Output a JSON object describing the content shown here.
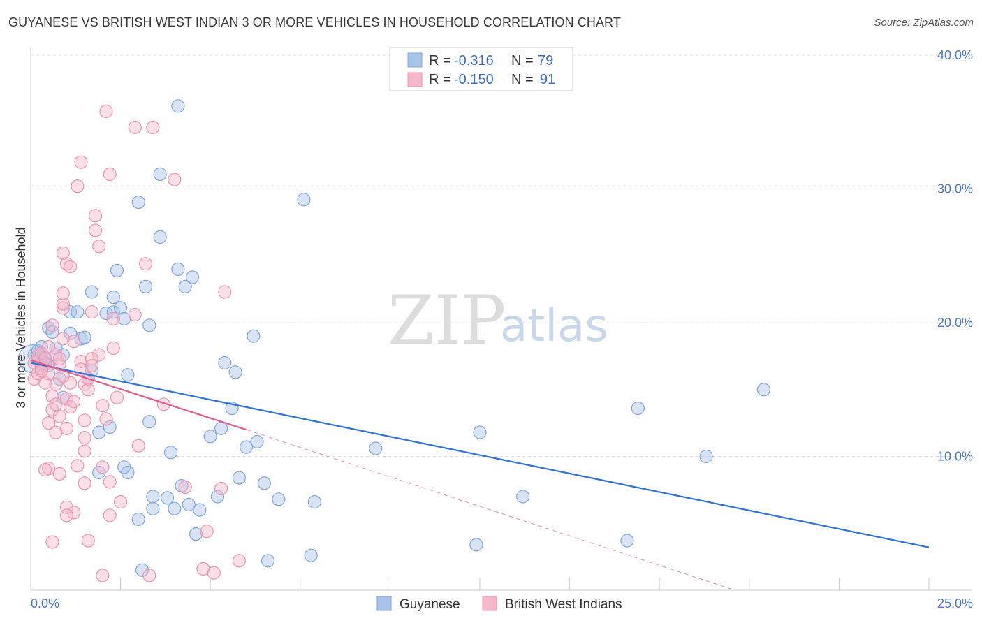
{
  "title": "GUYANESE VS BRITISH WEST INDIAN 3 OR MORE VEHICLES IN HOUSEHOLD CORRELATION CHART",
  "source": "Source: ZipAtlas.com",
  "watermark": {
    "zip": "ZIP",
    "atlas": "atlas"
  },
  "chart_data": {
    "type": "scatter",
    "xlabel": "",
    "ylabel": "3 or more Vehicles in Household",
    "xlim": [
      0,
      25
    ],
    "ylim": [
      0,
      40
    ],
    "x_tick_labels": [
      "0.0%",
      "25.0%"
    ],
    "y_ticks": [
      10,
      20,
      30,
      40
    ],
    "y_tick_labels": [
      "10.0%",
      "20.0%",
      "30.0%",
      "40.0%"
    ],
    "legend": {
      "r_label": "R =",
      "n_label": "N =",
      "entries": [
        {
          "r": "-0.316",
          "n": "79"
        },
        {
          "r": "-0.150",
          "n": "91"
        }
      ]
    },
    "series": [
      {
        "name": "Guyanese",
        "color": "#a9c4ea",
        "stroke": "#7fa6dc",
        "line_color": "#2f72d6",
        "trend": {
          "x0": 0,
          "y0": 17.0,
          "x1": 25,
          "y1": 3.2
        },
        "points": [
          [
            0.1,
            17.6
          ],
          [
            0.2,
            17.2
          ],
          [
            0.3,
            16.9
          ],
          [
            0.2,
            17.9
          ],
          [
            0.4,
            17.4
          ],
          [
            0.5,
            16.8
          ],
          [
            0.3,
            18.2
          ],
          [
            0.4,
            17.0
          ],
          [
            0.5,
            19.6
          ],
          [
            0.6,
            19.3
          ],
          [
            0.7,
            18.1
          ],
          [
            0.8,
            15.8
          ],
          [
            0.9,
            14.4
          ],
          [
            0.9,
            17.6
          ],
          [
            1.1,
            19.2
          ],
          [
            1.1,
            20.8
          ],
          [
            1.3,
            20.8
          ],
          [
            1.4,
            18.8
          ],
          [
            1.5,
            18.9
          ],
          [
            1.6,
            15.8
          ],
          [
            1.7,
            16.4
          ],
          [
            1.7,
            22.3
          ],
          [
            1.9,
            11.8
          ],
          [
            1.9,
            8.8
          ],
          [
            2.1,
            20.7
          ],
          [
            2.2,
            12.2
          ],
          [
            2.3,
            20.8
          ],
          [
            2.3,
            21.9
          ],
          [
            2.4,
            23.9
          ],
          [
            2.5,
            21.1
          ],
          [
            2.6,
            20.3
          ],
          [
            2.6,
            9.2
          ],
          [
            2.7,
            8.8
          ],
          [
            2.7,
            16.1
          ],
          [
            3.0,
            29.0
          ],
          [
            3.0,
            5.3
          ],
          [
            3.1,
            1.5
          ],
          [
            3.2,
            22.7
          ],
          [
            3.3,
            19.8
          ],
          [
            3.3,
            12.6
          ],
          [
            3.4,
            6.1
          ],
          [
            3.4,
            7.0
          ],
          [
            3.6,
            26.4
          ],
          [
            3.6,
            31.1
          ],
          [
            3.8,
            6.9
          ],
          [
            3.9,
            10.3
          ],
          [
            4.0,
            6.1
          ],
          [
            4.1,
            24.0
          ],
          [
            4.1,
            36.2
          ],
          [
            4.2,
            7.8
          ],
          [
            4.3,
            22.7
          ],
          [
            4.4,
            6.4
          ],
          [
            4.5,
            23.4
          ],
          [
            4.6,
            4.2
          ],
          [
            4.7,
            6.0
          ],
          [
            5.0,
            11.5
          ],
          [
            5.2,
            7.0
          ],
          [
            5.3,
            12.1
          ],
          [
            5.4,
            17.0
          ],
          [
            5.6,
            13.6
          ],
          [
            5.7,
            16.3
          ],
          [
            5.8,
            8.4
          ],
          [
            6.0,
            10.7
          ],
          [
            6.2,
            19.0
          ],
          [
            6.3,
            11.1
          ],
          [
            6.5,
            8.0
          ],
          [
            6.6,
            2.2
          ],
          [
            6.9,
            6.8
          ],
          [
            7.6,
            29.2
          ],
          [
            7.8,
            2.6
          ],
          [
            7.9,
            6.6
          ],
          [
            9.6,
            10.6
          ],
          [
            12.4,
            3.4
          ],
          [
            12.5,
            11.8
          ],
          [
            13.7,
            7.0
          ],
          [
            16.6,
            3.7
          ],
          [
            16.9,
            13.6
          ],
          [
            18.8,
            10.0
          ],
          [
            20.4,
            15.0
          ]
        ]
      },
      {
        "name": "British West Indians",
        "color": "#f5b7ca",
        "stroke": "#ec94b0",
        "line_color": "#e05a8d",
        "trend": {
          "x0": 0,
          "y0": 17.2,
          "x1": 6.0,
          "y1": 12.0
        },
        "trend_ext": {
          "x0": 6.0,
          "y0": 12.0,
          "x1": 19.6,
          "y1": 0
        },
        "points": [
          [
            0.1,
            15.8
          ],
          [
            0.1,
            17.0
          ],
          [
            0.2,
            17.5
          ],
          [
            0.2,
            16.2
          ],
          [
            0.3,
            17.7
          ],
          [
            0.3,
            16.6
          ],
          [
            0.4,
            15.5
          ],
          [
            0.4,
            16.9
          ],
          [
            0.4,
            17.3
          ],
          [
            0.5,
            18.2
          ],
          [
            0.5,
            12.5
          ],
          [
            0.5,
            16.2
          ],
          [
            0.5,
            9.1
          ],
          [
            0.6,
            14.5
          ],
          [
            0.6,
            13.5
          ],
          [
            0.6,
            19.8
          ],
          [
            0.6,
            3.6
          ],
          [
            0.7,
            11.8
          ],
          [
            0.7,
            17.6
          ],
          [
            0.7,
            15.4
          ],
          [
            0.8,
            13.0
          ],
          [
            0.8,
            8.7
          ],
          [
            0.8,
            16.9
          ],
          [
            0.8,
            17.3
          ],
          [
            0.9,
            18.8
          ],
          [
            0.9,
            21.1
          ],
          [
            0.9,
            21.4
          ],
          [
            0.9,
            25.2
          ],
          [
            0.9,
            22.2
          ],
          [
            1.0,
            24.4
          ],
          [
            1.0,
            14.3
          ],
          [
            1.0,
            12.1
          ],
          [
            1.0,
            6.2
          ],
          [
            1.1,
            13.7
          ],
          [
            1.1,
            24.2
          ],
          [
            1.2,
            18.6
          ],
          [
            1.2,
            14.1
          ],
          [
            1.2,
            5.8
          ],
          [
            1.3,
            30.2
          ],
          [
            1.3,
            9.3
          ],
          [
            1.4,
            32.0
          ],
          [
            1.4,
            17.1
          ],
          [
            1.4,
            16.5
          ],
          [
            1.5,
            15.4
          ],
          [
            1.5,
            12.7
          ],
          [
            1.5,
            10.4
          ],
          [
            1.5,
            8.0
          ],
          [
            1.6,
            15.8
          ],
          [
            1.6,
            15.0
          ],
          [
            1.6,
            3.7
          ],
          [
            1.7,
            20.8
          ],
          [
            1.7,
            16.8
          ],
          [
            1.8,
            26.9
          ],
          [
            1.8,
            28.0
          ],
          [
            1.9,
            25.7
          ],
          [
            1.9,
            17.6
          ],
          [
            2.0,
            9.2
          ],
          [
            2.0,
            1.1
          ],
          [
            2.1,
            35.8
          ],
          [
            2.1,
            12.8
          ],
          [
            2.2,
            31.1
          ],
          [
            2.2,
            8.1
          ],
          [
            2.2,
            5.6
          ],
          [
            2.3,
            20.3
          ],
          [
            2.3,
            18.1
          ],
          [
            2.4,
            14.4
          ],
          [
            2.5,
            6.6
          ],
          [
            2.9,
            34.6
          ],
          [
            2.9,
            20.6
          ],
          [
            3.0,
            10.8
          ],
          [
            3.2,
            24.4
          ],
          [
            3.3,
            1.1
          ],
          [
            3.4,
            34.6
          ],
          [
            3.7,
            13.9
          ],
          [
            4.0,
            30.7
          ],
          [
            4.3,
            7.7
          ],
          [
            4.8,
            1.6
          ],
          [
            4.9,
            4.4
          ],
          [
            5.1,
            1.3
          ],
          [
            5.3,
            7.6
          ],
          [
            5.4,
            22.3
          ],
          [
            5.8,
            2.2
          ],
          [
            0.3,
            16.4
          ],
          [
            0.7,
            13.9
          ],
          [
            1.1,
            15.5
          ],
          [
            1.5,
            11.4
          ],
          [
            0.4,
            9.0
          ],
          [
            1.0,
            5.6
          ],
          [
            1.7,
            17.3
          ],
          [
            2.0,
            13.8
          ],
          [
            0.9,
            16.0
          ]
        ]
      }
    ]
  }
}
